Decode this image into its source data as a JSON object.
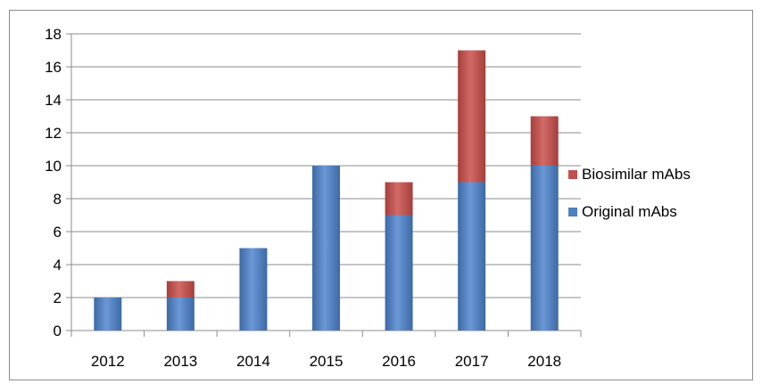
{
  "chart_data": {
    "type": "bar",
    "stacked": true,
    "categories": [
      "2012",
      "2013",
      "2014",
      "2015",
      "2016",
      "2017",
      "2018"
    ],
    "series": [
      {
        "name": "Original mAbs",
        "values": [
          2,
          2,
          5,
          10,
          7,
          9,
          10
        ],
        "color": "#4f81bd"
      },
      {
        "name": "Biosimilar mAbs",
        "values": [
          0,
          1,
          0,
          0,
          2,
          8,
          3
        ],
        "color": "#c0504d"
      }
    ],
    "title": "",
    "xlabel": "",
    "ylabel": "",
    "ylim": [
      0,
      18
    ],
    "yticks": [
      0,
      2,
      4,
      6,
      8,
      10,
      12,
      14,
      16,
      18
    ],
    "grid": true,
    "legend": "right"
  }
}
